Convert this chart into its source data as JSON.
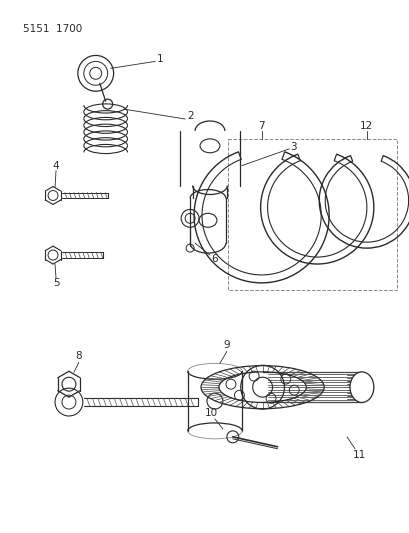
{
  "title_code": "5151  1700",
  "bg_color": "#ffffff",
  "line_color": "#2a2a2a",
  "label_color": "#222222",
  "fig_width": 4.1,
  "fig_height": 5.33,
  "dpi": 100
}
